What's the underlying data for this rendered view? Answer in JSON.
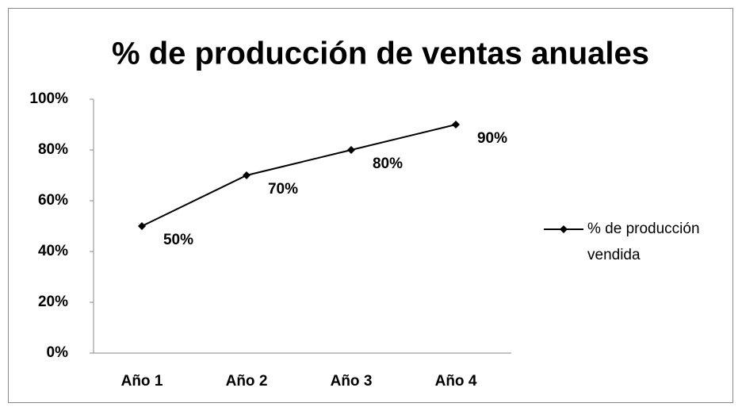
{
  "chart_data": {
    "type": "line",
    "title": "% de producción de ventas anuales",
    "categories": [
      "Año 1",
      "Año 2",
      "Año 3",
      "Año 4"
    ],
    "series": [
      {
        "name": "% de producción vendida",
        "color": "#000000",
        "values": [
          50,
          70,
          80,
          90
        ],
        "value_labels": [
          "50%",
          "70%",
          "80%",
          "90%"
        ]
      }
    ],
    "ylim": [
      0,
      100
    ],
    "yticks": [
      {
        "value": 0,
        "label": "0%"
      },
      {
        "value": 20,
        "label": "20%"
      },
      {
        "value": 40,
        "label": "40%"
      },
      {
        "value": 60,
        "label": "60%"
      },
      {
        "value": 80,
        "label": "80%"
      },
      {
        "value": 100,
        "label": "100%"
      }
    ],
    "grid": false,
    "legend": "right"
  }
}
